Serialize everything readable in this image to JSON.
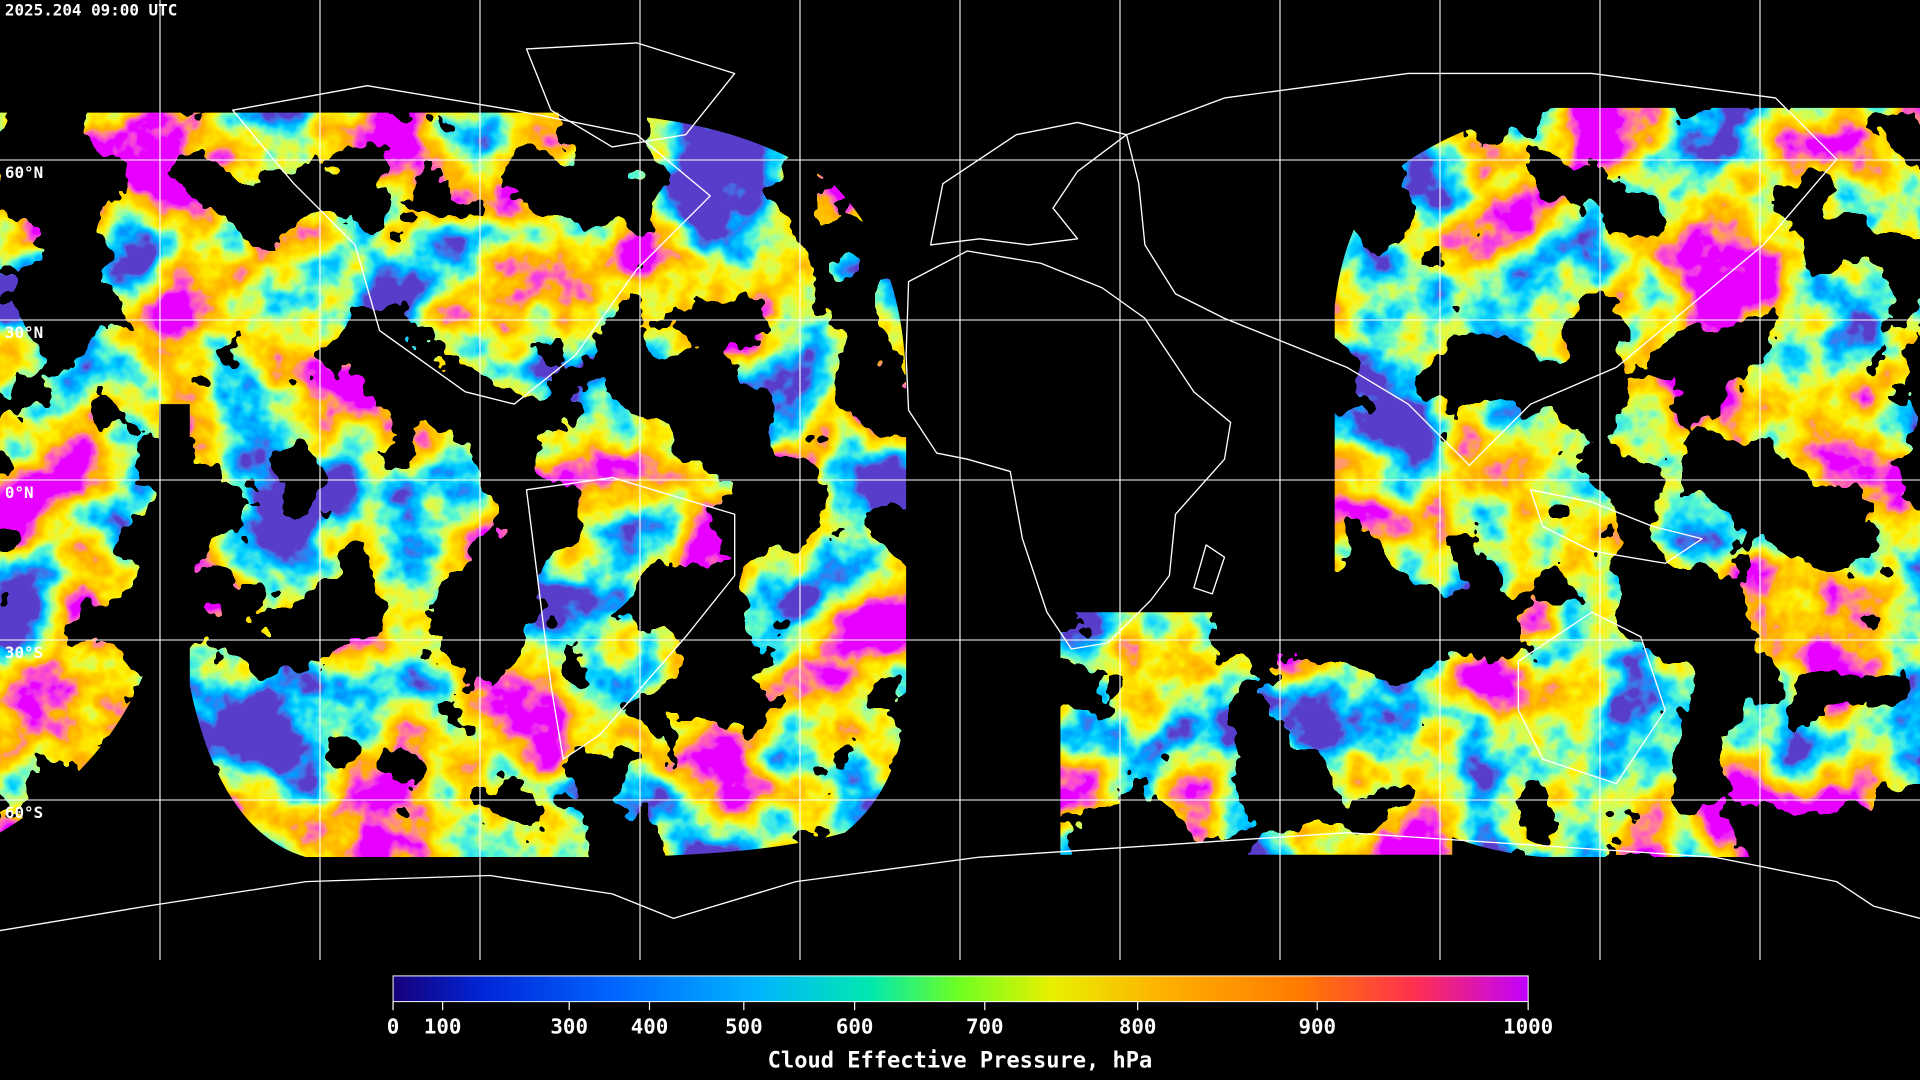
{
  "header": {
    "timestamp": "2025.204 09:00 UTC"
  },
  "map": {
    "lat_labels": [
      "60°N",
      "30°N",
      "0°N",
      "30°S",
      "60°S"
    ]
  },
  "colorbar": {
    "label": "Cloud Effective Pressure, hPa",
    "lim": [
      0,
      1000
    ],
    "ticks": [
      0,
      100,
      300,
      400,
      500,
      600,
      700,
      800,
      900,
      1000
    ]
  }
}
